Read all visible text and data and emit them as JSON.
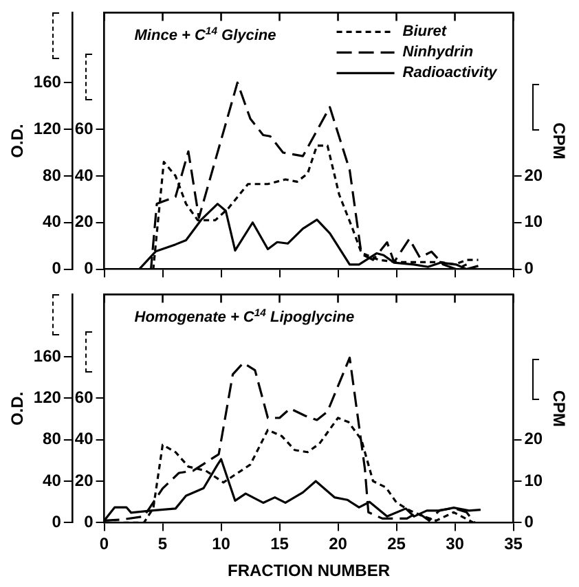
{
  "chart_data": [
    {
      "type": "line",
      "title": "Mince + C$^{14}$ Glycine",
      "ylabel": "O.D.",
      "y2label": "CPM",
      "xlim": [
        0,
        35
      ],
      "xticks": [
        0,
        5,
        10,
        15,
        20,
        25,
        30,
        35
      ],
      "ylim": [
        0,
        220
      ],
      "yticks": [
        0,
        40,
        80,
        120,
        160
      ],
      "y2lim": [
        0,
        55
      ],
      "y2ticks": [
        0,
        10,
        20
      ],
      "y3lim": [
        0,
        110
      ],
      "y3ticks": [
        0,
        20,
        40,
        60
      ],
      "tick_labels": "y",
      "legend": "top right",
      "marker": "none",
      "grid": false,
      "series": [
        {
          "name": "Biuret",
          "color": "#000000",
          "axis": "y3",
          "line_style": "dashed",
          "x": [
            0,
            4.2,
            5.1,
            6.1,
            7,
            8,
            9.5,
            10.6,
            12.3,
            14,
            15.5,
            16.5,
            17.4,
            18.2,
            19.1,
            20.1,
            21.2,
            22,
            23.5,
            25,
            27,
            28.8,
            30,
            31,
            32
          ],
          "values": [
            0,
            0,
            46,
            40,
            28,
            21,
            21,
            26,
            36.5,
            36.5,
            38.5,
            37.5,
            41,
            53,
            53,
            32,
            18,
            7,
            4,
            3,
            3,
            3,
            2,
            4,
            4
          ]
        },
        {
          "name": "Ninhydrin",
          "color": "#000000",
          "axis": "y",
          "line_style": "dashed",
          "x": [
            0,
            4,
            4.5,
            5,
            6.1,
            7.2,
            8.1,
            11.4,
            12.5,
            13.6,
            14.2,
            15.3,
            17,
            19.3,
            21,
            22,
            23,
            24.2,
            24.8,
            26.1,
            27,
            28,
            29,
            30.1,
            31
          ],
          "values": [
            0,
            0,
            56,
            58,
            62,
            101,
            44,
            160,
            129,
            115,
            114,
            100,
            97,
            139,
            85,
            13,
            8,
            23,
            6,
            26,
            10,
            15,
            4,
            0,
            4
          ]
        },
        {
          "name": "Radioactivity",
          "color": "#000000",
          "axis": "y2",
          "line_style": "solid",
          "x": [
            0,
            3,
            4.4,
            6.1,
            7,
            8.3,
            9.7,
            10.4,
            11.2,
            12.7,
            14,
            14.8,
            15.7,
            17,
            18.2,
            19.3,
            21,
            21.8,
            23.3,
            23.9,
            24.8,
            26.5,
            27.7,
            28.8,
            30.1,
            31,
            32
          ],
          "values": [
            0,
            0,
            3.8,
            5.3,
            6.2,
            10.6,
            14,
            12.5,
            4,
            10,
            4.3,
            5.8,
            5.5,
            8.7,
            10.6,
            7.7,
            1,
            1,
            3.4,
            3,
            1.4,
            1,
            0.5,
            1.4,
            1,
            0,
            0.7
          ]
        }
      ]
    },
    {
      "type": "line",
      "title": "Homogenate + C$^{14}$ Lipoglycine",
      "xlabel": "FRACTION NUMBER",
      "ylabel": "O.D.",
      "y2label": "CPM",
      "xlim": [
        0,
        35
      ],
      "xticks": [
        0,
        5,
        10,
        15,
        20,
        25,
        30,
        35
      ],
      "ylim": [
        0,
        220
      ],
      "yticks": [
        0,
        40,
        80,
        120,
        160
      ],
      "y2lim": [
        0,
        55
      ],
      "y2ticks": [
        0,
        10,
        20
      ],
      "y3lim": [
        0,
        110
      ],
      "y3ticks": [
        0,
        20,
        40,
        60
      ],
      "marker": "none",
      "grid": false,
      "series": [
        {
          "color": "#000000",
          "axis": "y3",
          "line_style": "dashed",
          "x": [
            0,
            3.4,
            4.2,
            5,
            6.1,
            7.2,
            8.7,
            10.2,
            12.5,
            14,
            15.2,
            16.3,
            17.4,
            18.4,
            20,
            20.9,
            22,
            23,
            24.1,
            25,
            26.1,
            27.3,
            28.4,
            29.9,
            31.6
          ],
          "values": [
            0,
            0,
            7,
            37.5,
            34,
            27,
            25,
            19.4,
            28,
            44.7,
            41.7,
            35,
            34,
            38,
            50.5,
            48.5,
            40,
            20,
            17,
            9.7,
            6,
            3,
            1,
            5,
            0
          ]
        },
        {
          "color": "#000000",
          "axis": "y",
          "line_style": "dashed",
          "x": [
            0,
            1.5,
            3.4,
            5,
            6.4,
            7.6,
            9.8,
            11,
            11.9,
            12.9,
            14,
            15,
            15.9,
            17.2,
            18.2,
            19.1,
            21,
            22.3,
            22.6,
            23.8,
            25,
            25.9,
            26.8,
            27.8,
            28.7,
            29.9,
            31,
            31.7
          ],
          "values": [
            2,
            3,
            6,
            33,
            48,
            50,
            66,
            143,
            154,
            147,
            101,
            101,
            110,
            103,
            99,
            107,
            159,
            52,
            10,
            4,
            4,
            4,
            10,
            2,
            12,
            14,
            10,
            0
          ]
        },
        {
          "color": "#000000",
          "axis": "y2",
          "line_style": "solid",
          "x": [
            0,
            0.9,
            1.9,
            2.3,
            4,
            6.1,
            7,
            8.5,
            9.7,
            10,
            11.2,
            12.1,
            13.6,
            14.6,
            15.5,
            17,
            18.1,
            19.7,
            20.8,
            21.8,
            22.7,
            24.2,
            25.8,
            26.5,
            27.6,
            28.7,
            29.9,
            31.2,
            32.2
          ],
          "values": [
            0.5,
            3.7,
            3.7,
            2.4,
            2.9,
            3.4,
            6.5,
            8.3,
            14,
            15.3,
            5.3,
            7,
            4.8,
            6.1,
            4.8,
            7.3,
            10,
            6.1,
            5.5,
            3.7,
            5,
            1.5,
            3.4,
            1.5,
            2.9,
            2.9,
            3.6,
            2.9,
            3.1
          ]
        }
      ]
    }
  ]
}
